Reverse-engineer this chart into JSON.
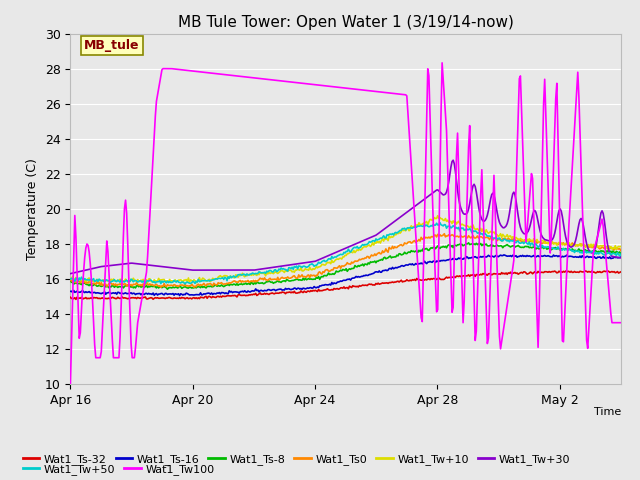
{
  "title": "MB Tule Tower: Open Water 1 (3/19/14-now)",
  "xlabel": "Time",
  "ylabel": "Temperature (C)",
  "ylim": [
    10,
    30
  ],
  "yticks": [
    10,
    12,
    14,
    16,
    18,
    20,
    22,
    24,
    26,
    28,
    30
  ],
  "bg_color": "#e8e8e8",
  "grid_color": "#ffffff",
  "tick_positions": [
    0,
    4,
    8,
    12,
    16
  ],
  "tick_labels": [
    "Apr 16",
    "Apr 20",
    "Apr 24",
    "Apr 28",
    "May 2"
  ],
  "xlim": [
    0,
    18
  ],
  "legend_label": "MB_tule",
  "legend_text_color": "#880000",
  "legend_bg": "#ffffbb",
  "legend_border": "#aaaaaa",
  "series_order": [
    "Wat1_Ts-32",
    "Wat1_Ts-16",
    "Wat1_Ts-8",
    "Wat1_Ts0",
    "Wat1_Tw+10",
    "Wat1_Tw+30",
    "Wat1_Tw+50",
    "Wat1_Tw100"
  ],
  "series": {
    "Wat1_Ts-32": {
      "color": "#dd0000",
      "label": "Wat1_Ts-32"
    },
    "Wat1_Ts-16": {
      "color": "#0000cc",
      "label": "Wat1_Ts-16"
    },
    "Wat1_Ts-8": {
      "color": "#00bb00",
      "label": "Wat1_Ts-8"
    },
    "Wat1_Ts0": {
      "color": "#ff8800",
      "label": "Wat1_Ts0"
    },
    "Wat1_Tw+10": {
      "color": "#dddd00",
      "label": "Wat1_Tw+10"
    },
    "Wat1_Tw+30": {
      "color": "#8800cc",
      "label": "Wat1_Tw+30"
    },
    "Wat1_Tw+50": {
      "color": "#00cccc",
      "label": "Wat1_Tw+50"
    },
    "Wat1_Tw100": {
      "color": "#ff00ff",
      "label": "Wat1_Tw100"
    }
  },
  "bottom_legend": [
    {
      "label": "Wat1_Ts-32",
      "color": "#dd0000"
    },
    {
      "label": "Wat1_Ts-16",
      "color": "#0000cc"
    },
    {
      "label": "Wat1_Ts-8",
      "color": "#00bb00"
    },
    {
      "label": "Wat1_Ts0",
      "color": "#ff8800"
    },
    {
      "label": "Wat1_Tw+10",
      "color": "#dddd00"
    },
    {
      "label": "Wat1_Tw+30",
      "color": "#8800cc"
    },
    {
      "label": "Wat1_Tw+50",
      "color": "#00cccc"
    },
    {
      "label": "Wat1_Tw100",
      "color": "#ff00ff"
    }
  ]
}
